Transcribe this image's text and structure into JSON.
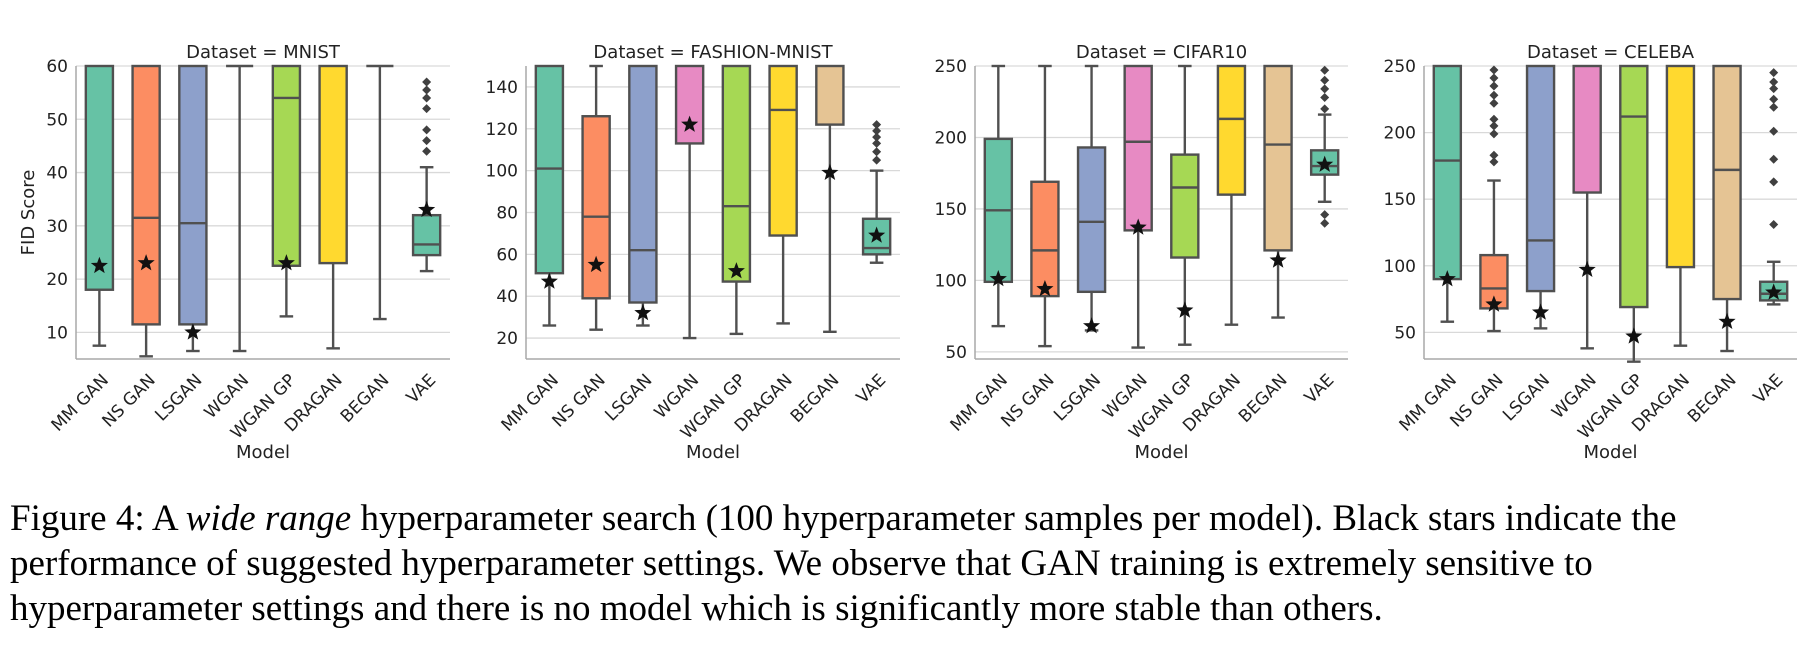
{
  "chart_data": [
    {
      "type": "box",
      "title": "Dataset = MNIST",
      "xlabel": "Model",
      "ylabel": "FID Score",
      "ylim": [
        5,
        60
      ],
      "yticks": [
        10,
        20,
        30,
        40,
        50,
        60
      ],
      "grid": "horizontal",
      "categories": [
        "MM GAN",
        "NS GAN",
        "LSGAN",
        "WGAN",
        "WGAN GP",
        "DRAGAN",
        "BEGAN",
        "VAE"
      ],
      "boxes": [
        {
          "q1": 18,
          "median": 60,
          "q3": 60,
          "whisker_low": 7.5,
          "whisker_high": 60,
          "star": 22.5,
          "outliers": []
        },
        {
          "q1": 11.5,
          "median": 31.5,
          "q3": 60,
          "whisker_low": 5.5,
          "whisker_high": 60,
          "star": 23,
          "outliers": []
        },
        {
          "q1": 11.5,
          "median": 30.5,
          "q3": 60,
          "whisker_low": 6.5,
          "whisker_high": 60,
          "star": 10,
          "outliers": []
        },
        {
          "q1": 60,
          "median": 60,
          "q3": 60,
          "whisker_low": 6.5,
          "whisker_high": 60,
          "star": null,
          "outliers": []
        },
        {
          "q1": 22.5,
          "median": 54,
          "q3": 60,
          "whisker_low": 13,
          "whisker_high": 60,
          "star": 23,
          "outliers": []
        },
        {
          "q1": 23,
          "median": 60,
          "q3": 60,
          "whisker_low": 7,
          "whisker_high": 60,
          "star": null,
          "outliers": []
        },
        {
          "q1": 60,
          "median": 60,
          "q3": 60,
          "whisker_low": 12.5,
          "whisker_high": 60,
          "star": null,
          "outliers": []
        },
        {
          "q1": 24.5,
          "median": 26.5,
          "q3": 32,
          "whisker_low": 21.5,
          "whisker_high": 41,
          "star": 33,
          "outliers": [
            44,
            46,
            48,
            52,
            54,
            55.5,
            57
          ]
        }
      ]
    },
    {
      "type": "box",
      "title": "Dataset = FASHION-MNIST",
      "xlabel": "Model",
      "ylabel": "",
      "ylim": [
        10,
        150
      ],
      "yticks": [
        20,
        40,
        60,
        80,
        100,
        120,
        140
      ],
      "grid": "horizontal",
      "categories": [
        "MM GAN",
        "NS GAN",
        "LSGAN",
        "WGAN",
        "WGAN GP",
        "DRAGAN",
        "BEGAN",
        "VAE"
      ],
      "boxes": [
        {
          "q1": 51,
          "median": 101,
          "q3": 150,
          "whisker_low": 26,
          "whisker_high": 150,
          "star": 47,
          "outliers": []
        },
        {
          "q1": 39,
          "median": 78,
          "q3": 126,
          "whisker_low": 24,
          "whisker_high": 150,
          "star": 55,
          "outliers": []
        },
        {
          "q1": 37,
          "median": 62,
          "q3": 150,
          "whisker_low": 26,
          "whisker_high": 150,
          "star": 32,
          "outliers": []
        },
        {
          "q1": 113,
          "median": 150,
          "q3": 150,
          "whisker_low": 20,
          "whisker_high": 150,
          "star": 122,
          "outliers": []
        },
        {
          "q1": 47,
          "median": 83,
          "q3": 150,
          "whisker_low": 22,
          "whisker_high": 150,
          "star": 52,
          "outliers": []
        },
        {
          "q1": 69,
          "median": 129,
          "q3": 150,
          "whisker_low": 27,
          "whisker_high": 150,
          "star": null,
          "outliers": []
        },
        {
          "q1": 122,
          "median": 150,
          "q3": 150,
          "whisker_low": 23,
          "whisker_high": 150,
          "star": 99,
          "outliers": []
        },
        {
          "q1": 60,
          "median": 63,
          "q3": 77,
          "whisker_low": 56,
          "whisker_high": 100,
          "star": 69,
          "outliers": [
            105,
            109,
            113,
            116,
            119,
            122
          ]
        }
      ]
    },
    {
      "type": "box",
      "title": "Dataset = CIFAR10",
      "xlabel": "Model",
      "ylabel": "",
      "ylim": [
        45,
        250
      ],
      "yticks": [
        50,
        100,
        150,
        200,
        250
      ],
      "grid": "horizontal",
      "categories": [
        "MM GAN",
        "NS GAN",
        "LSGAN",
        "WGAN",
        "WGAN GP",
        "DRAGAN",
        "BEGAN",
        "VAE"
      ],
      "boxes": [
        {
          "q1": 99,
          "median": 149,
          "q3": 199,
          "whisker_low": 68,
          "whisker_high": 250,
          "star": 101,
          "outliers": []
        },
        {
          "q1": 89,
          "median": 121,
          "q3": 169,
          "whisker_low": 54,
          "whisker_high": 250,
          "star": 94,
          "outliers": []
        },
        {
          "q1": 92,
          "median": 141,
          "q3": 193,
          "whisker_low": 65,
          "whisker_high": 250,
          "star": 68,
          "outliers": []
        },
        {
          "q1": 135,
          "median": 197,
          "q3": 250,
          "whisker_low": 53,
          "whisker_high": 250,
          "star": 137,
          "outliers": []
        },
        {
          "q1": 116,
          "median": 165,
          "q3": 188,
          "whisker_low": 55,
          "whisker_high": 250,
          "star": 79,
          "outliers": []
        },
        {
          "q1": 160,
          "median": 213,
          "q3": 250,
          "whisker_low": 69,
          "whisker_high": 250,
          "star": null,
          "outliers": []
        },
        {
          "q1": 121,
          "median": 195,
          "q3": 250,
          "whisker_low": 74,
          "whisker_high": 250,
          "star": 114,
          "outliers": []
        },
        {
          "q1": 174,
          "median": 180,
          "q3": 191,
          "whisker_low": 155,
          "whisker_high": 216,
          "star": 181,
          "outliers": [
            140,
            146,
            220,
            228,
            234,
            240,
            247
          ]
        }
      ]
    },
    {
      "type": "box",
      "title": "Dataset = CELEBA",
      "xlabel": "Model",
      "ylabel": "",
      "ylim": [
        30,
        250
      ],
      "yticks": [
        50,
        100,
        150,
        200,
        250
      ],
      "grid": "horizontal",
      "categories": [
        "MM GAN",
        "NS GAN",
        "LSGAN",
        "WGAN",
        "WGAN GP",
        "DRAGAN",
        "BEGAN",
        "VAE"
      ],
      "boxes": [
        {
          "q1": 90,
          "median": 179,
          "q3": 250,
          "whisker_low": 58,
          "whisker_high": 250,
          "star": 90,
          "outliers": []
        },
        {
          "q1": 68,
          "median": 83,
          "q3": 108,
          "whisker_low": 51,
          "whisker_high": 164,
          "star": 71,
          "outliers": [
            178,
            183,
            199,
            205,
            210,
            222,
            228,
            235,
            241,
            247
          ]
        },
        {
          "q1": 81,
          "median": 119,
          "q3": 250,
          "whisker_low": 53,
          "whisker_high": 250,
          "star": 65,
          "outliers": []
        },
        {
          "q1": 155,
          "median": 250,
          "q3": 250,
          "whisker_low": 38,
          "whisker_high": 250,
          "star": 97,
          "outliers": []
        },
        {
          "q1": 69,
          "median": 212,
          "q3": 250,
          "whisker_low": 28,
          "whisker_high": 250,
          "star": 47,
          "outliers": []
        },
        {
          "q1": 99,
          "median": 250,
          "q3": 250,
          "whisker_low": 40,
          "whisker_high": 250,
          "star": null,
          "outliers": []
        },
        {
          "q1": 75,
          "median": 172,
          "q3": 250,
          "whisker_low": 36,
          "whisker_high": 250,
          "star": 58,
          "outliers": []
        },
        {
          "q1": 74,
          "median": 79,
          "q3": 88,
          "whisker_low": 71,
          "whisker_high": 103,
          "star": 80,
          "outliers": [
            131,
            163,
            180,
            201,
            219,
            225,
            233,
            238,
            245
          ]
        }
      ]
    }
  ],
  "colors": {
    "MM GAN": "#66c2a5",
    "NS GAN": "#fc8d62",
    "LSGAN": "#8da0cb",
    "WGAN": "#e78ac3",
    "WGAN GP": "#a6d854",
    "DRAGAN": "#ffd92f",
    "BEGAN": "#e5c494",
    "VAE": "#66c2a5"
  },
  "caption": {
    "label": "Figure 4:",
    "text_before": " A ",
    "emphasis": "wide range",
    "text_after": " hyperparameter search (100 hyperparameter samples per model). Black stars indicate the performance of suggested hyperparameter settings. We observe that GAN training is extremely sensitive to hyperparameter settings and there is no model which is significantly more stable than others."
  }
}
